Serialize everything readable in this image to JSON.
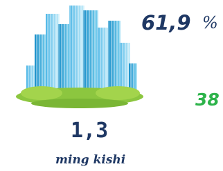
{
  "stats": {
    "share": {
      "value": "61,9",
      "unit": "%"
    },
    "count": "38",
    "total": "1,3",
    "total_label": "ming kishi"
  }
}
